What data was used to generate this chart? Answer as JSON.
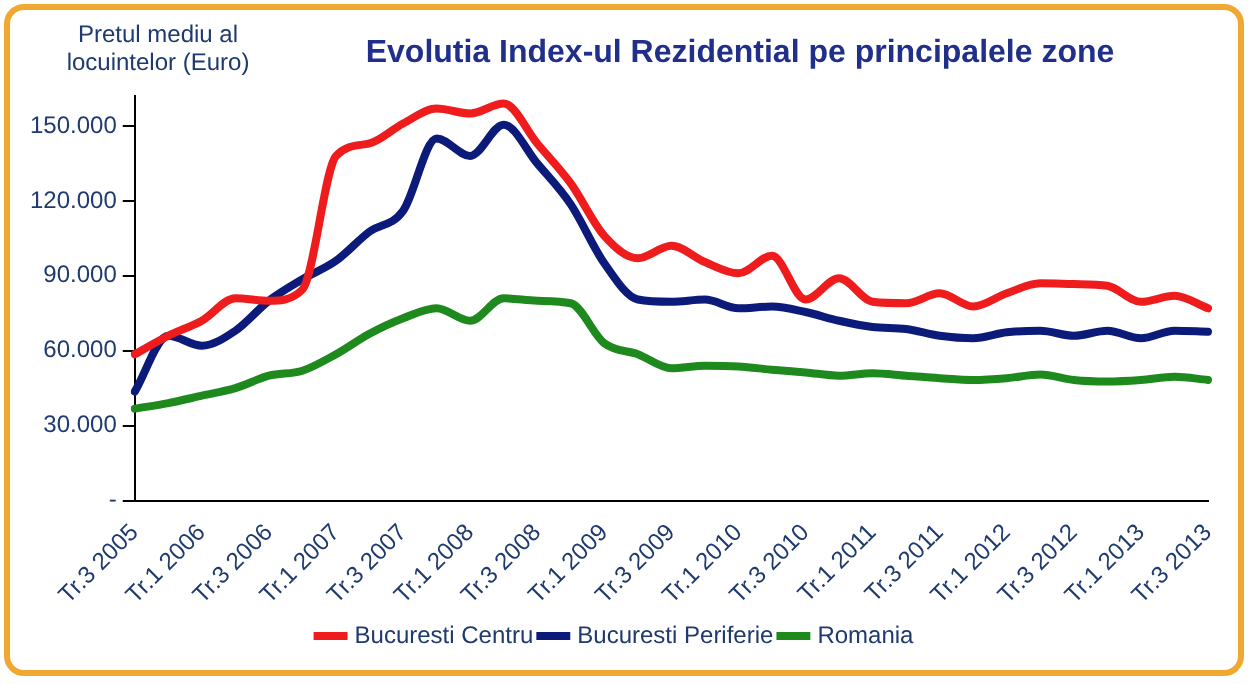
{
  "chart_data": {
    "type": "line",
    "title": "Evolutia Index-ul Rezidential pe principalele zone",
    "ylabel": "Pretul mediu al locuintelor (Euro)",
    "categories": [
      "Tr.3 2005",
      null,
      "Tr.1 2006",
      null,
      "Tr.3 2006",
      null,
      "Tr.1 2007",
      null,
      "Tr.3 2007",
      null,
      "Tr.1 2008",
      null,
      "Tr.3 2008",
      null,
      "Tr.1 2009",
      null,
      "Tr.3 2009",
      null,
      "Tr.1 2010",
      null,
      "Tr.3 2010",
      null,
      "Tr.1 2011",
      null,
      "Tr.3 2011",
      null,
      "Tr.1 2012",
      null,
      "Tr.3 2012",
      null,
      "Tr.1 2013",
      null,
      "Tr.3 2013"
    ],
    "series": [
      {
        "name": "Bucuresti Centru",
        "color": "#ee1c1c",
        "values": [
          58600,
          66000,
          72000,
          81000,
          80000,
          84500,
          138000,
          143000,
          151000,
          157000,
          155000,
          159000,
          143000,
          127000,
          106000,
          97000,
          102000,
          95500,
          91000,
          98000,
          80500,
          89000,
          79600,
          79000,
          83000,
          77700,
          83000,
          87000,
          86700,
          86000,
          79600,
          82000,
          77000
        ]
      },
      {
        "name": "Bucuresti Periferie",
        "color": "#0c1a7a",
        "values": [
          43600,
          66000,
          62000,
          68000,
          80000,
          88600,
          96000,
          107700,
          116000,
          145000,
          138000,
          150500,
          135000,
          118600,
          95000,
          80500,
          79600,
          80500,
          77000,
          77700,
          75500,
          72000,
          69500,
          68700,
          66000,
          65000,
          67400,
          68000,
          66000,
          68000,
          65000,
          68000,
          67600
        ]
      },
      {
        "name": "Romania",
        "color": "#1e8a1e",
        "values": [
          36800,
          39000,
          42000,
          45000,
          50000,
          52000,
          58600,
          66800,
          73000,
          77000,
          72000,
          81000,
          80000,
          79000,
          63000,
          58600,
          53000,
          54000,
          53700,
          52400,
          51300,
          50000,
          51000,
          50000,
          49000,
          48300,
          49000,
          50500,
          48300,
          47700,
          48300,
          49600,
          48300
        ]
      }
    ],
    "ylim": [
      0,
      162000
    ],
    "yticks": [
      {
        "value": 0,
        "label": "-"
      },
      {
        "value": 30000,
        "label": "30.000"
      },
      {
        "value": 60000,
        "label": "60.000"
      },
      {
        "value": 90000,
        "label": "90.000"
      },
      {
        "value": 120000,
        "label": "120.000"
      },
      {
        "value": 150000,
        "label": "150.000"
      }
    ],
    "grid": false,
    "legend": "bottom",
    "marker": "none",
    "line_style": "solid"
  }
}
